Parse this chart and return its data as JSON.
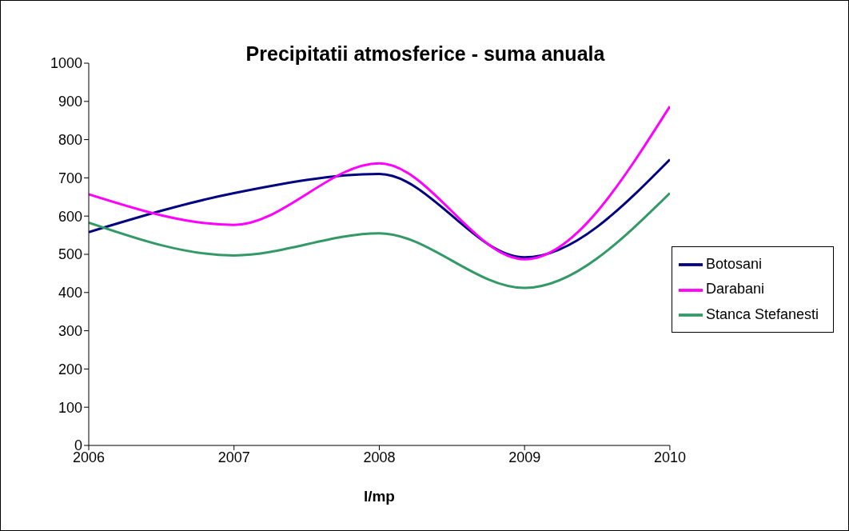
{
  "chart_data": {
    "type": "line",
    "title": "Precipitatii atmosferice - suma anuala",
    "xlabel": "l/mp",
    "x": [
      2006,
      2007,
      2008,
      2009,
      2010
    ],
    "series": [
      {
        "name": "Botosani",
        "color": "#000080",
        "values": [
          558,
          660,
          710,
          492,
          748
        ]
      },
      {
        "name": "Darabani",
        "color": "#ff00ff",
        "values": [
          657,
          577,
          738,
          487,
          887
        ]
      },
      {
        "name": "Stanca Stefanesti",
        "color": "#339966",
        "values": [
          583,
          497,
          555,
          412,
          660
        ]
      }
    ],
    "xlim": [
      2006,
      2010
    ],
    "xticks": [
      2006,
      2007,
      2008,
      2009,
      2010
    ],
    "ylim": [
      0,
      1000
    ],
    "yticks": [
      0,
      100,
      200,
      300,
      400,
      500,
      600,
      700,
      800,
      900,
      1000
    ],
    "legend": "right",
    "marker": "none",
    "line_style": "solid"
  }
}
